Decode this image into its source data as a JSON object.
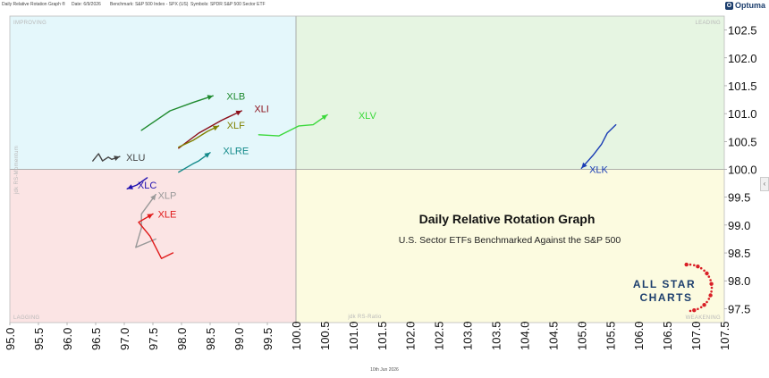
{
  "header": {
    "title": "Daily Relative Rotation Graph ®",
    "date": "Date: 6/9/2026",
    "benchmark": "Benchmark: S&P 500 Index - SPX (US)",
    "symbols": "Symbols: SPDR S&P 500 Sector ETF",
    "brand": "Optuma",
    "brand_badge": "O"
  },
  "footer": {
    "date_label": "10th Jun 2026"
  },
  "collapse_arrow": "‹",
  "chart_data": {
    "type": "scatter",
    "title": "Daily Relative Rotation Graph",
    "subtitle": "U.S. Sector ETFs Benchmarked Against the S&P 500",
    "xlabel": "jdk RS-Ratio",
    "ylabel": "jdk RS-Momentum",
    "xlim": [
      95.0,
      100.0,
      107.5
    ],
    "xlim_note": "x axis is piecewise linear: 95.0–100.0 on the left segment, 100.0–107.5 on the right",
    "ylim": [
      97.25,
      102.75
    ],
    "x_ticks": [
      "95.0",
      "95.5",
      "96.0",
      "96.5",
      "97.0",
      "97.5",
      "98.0",
      "98.5",
      "99.0",
      "99.5",
      "100.0",
      "100.5",
      "101.0",
      "101.5",
      "102.0",
      "102.5",
      "103.0",
      "103.5",
      "104.0",
      "104.5",
      "105.0",
      "105.5",
      "106.0",
      "106.5",
      "107.0",
      "107.5"
    ],
    "y_ticks": [
      "97.5",
      "98.0",
      "98.5",
      "99.0",
      "99.5",
      "100.0",
      "100.5",
      "101.0",
      "101.5",
      "102.0",
      "102.5"
    ],
    "grid": false,
    "center": [
      100.0,
      100.0
    ],
    "quadrants": [
      {
        "name": "improving",
        "label": "IMPROVING",
        "color": "#e4f7fb",
        "position": "top-left"
      },
      {
        "name": "leading",
        "label": "LEADING",
        "color": "#e6f5e2",
        "position": "top-right"
      },
      {
        "name": "lagging",
        "label": "LAGGING",
        "color": "#fbe4e4",
        "position": "bottom-left"
      },
      {
        "name": "weakening",
        "label": "WEAKENING",
        "color": "#fcfbe0",
        "position": "bottom-right"
      }
    ],
    "series": [
      {
        "name": "XLB",
        "color": "#1f8a2e",
        "points": [
          [
            97.3,
            100.7
          ],
          [
            97.8,
            101.05
          ],
          [
            98.2,
            101.2
          ],
          [
            98.55,
            101.32
          ]
        ]
      },
      {
        "name": "XLI",
        "color": "#8b0f1a",
        "points": [
          [
            97.95,
            100.38
          ],
          [
            98.3,
            100.65
          ],
          [
            98.7,
            100.88
          ],
          [
            99.05,
            101.05
          ]
        ]
      },
      {
        "name": "XLF",
        "color": "#808000",
        "points": [
          [
            97.95,
            100.4
          ],
          [
            98.2,
            100.52
          ],
          [
            98.45,
            100.68
          ],
          [
            98.65,
            100.78
          ]
        ]
      },
      {
        "name": "XLV",
        "color": "#3ad83a",
        "points": [
          [
            99.35,
            100.62
          ],
          [
            99.7,
            100.6
          ],
          [
            100.05,
            100.78
          ],
          [
            100.3,
            100.8
          ],
          [
            100.55,
            100.98
          ]
        ]
      },
      {
        "name": "XLRE",
        "color": "#138a8a",
        "points": [
          [
            97.95,
            99.95
          ],
          [
            98.2,
            100.1
          ],
          [
            98.3,
            100.15
          ],
          [
            98.5,
            100.3
          ]
        ]
      },
      {
        "name": "XLU",
        "color": "#444444",
        "points": [
          [
            96.45,
            100.15
          ],
          [
            96.55,
            100.28
          ],
          [
            96.62,
            100.15
          ],
          [
            96.72,
            100.22
          ],
          [
            96.78,
            100.18
          ],
          [
            96.92,
            100.23
          ]
        ]
      },
      {
        "name": "XLK",
        "color": "#1a3db5",
        "points": [
          [
            105.6,
            100.8
          ],
          [
            105.45,
            100.65
          ],
          [
            105.35,
            100.45
          ],
          [
            105.2,
            100.25
          ],
          [
            105.0,
            100.02
          ]
        ]
      },
      {
        "name": "XLC",
        "color": "#2010b0",
        "points": [
          [
            97.4,
            99.85
          ],
          [
            97.22,
            99.72
          ],
          [
            97.05,
            99.65
          ]
        ]
      },
      {
        "name": "XLP",
        "color": "#999999",
        "points": [
          [
            97.55,
            98.75
          ],
          [
            97.2,
            98.6
          ],
          [
            97.3,
            98.95
          ],
          [
            97.3,
            99.2
          ],
          [
            97.55,
            99.55
          ]
        ]
      },
      {
        "name": "XLE",
        "color": "#e01818",
        "points": [
          [
            97.85,
            98.5
          ],
          [
            97.65,
            98.4
          ],
          [
            97.45,
            98.8
          ],
          [
            97.25,
            99.05
          ],
          [
            97.5,
            99.2
          ]
        ]
      }
    ],
    "labels": [
      {
        "series": "XLB",
        "x": 98.95,
        "y": 101.3
      },
      {
        "series": "XLI",
        "x": 99.4,
        "y": 101.07
      },
      {
        "series": "XLF",
        "x": 98.95,
        "y": 100.78
      },
      {
        "series": "XLV",
        "x": 101.25,
        "y": 100.95
      },
      {
        "series": "XLRE",
        "x": 98.95,
        "y": 100.32
      },
      {
        "series": "XLU",
        "x": 97.2,
        "y": 100.2
      },
      {
        "series": "XLK",
        "x": 105.3,
        "y": 99.98
      },
      {
        "series": "XLC",
        "x": 97.4,
        "y": 99.7
      },
      {
        "series": "XLP",
        "x": 97.75,
        "y": 99.52
      },
      {
        "series": "XLE",
        "x": 97.75,
        "y": 99.18
      }
    ]
  },
  "watermark": {
    "line1": "ALL STAR",
    "line2": "CHARTS",
    "text_color": "#1d3f6e",
    "star_color": "#d91f26"
  }
}
